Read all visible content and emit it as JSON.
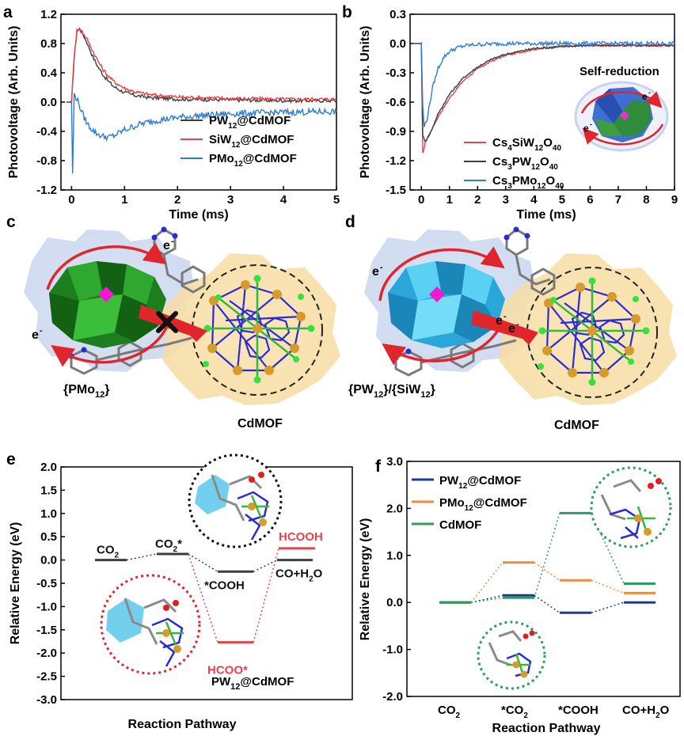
{
  "panel_labels": {
    "a": "a",
    "b": "b",
    "c": "c",
    "d": "d",
    "e": "e",
    "f": "f"
  },
  "colors": {
    "pw12": "#3d3d3d",
    "siw12": "#e8424a",
    "pmo12": "#2f7bd4",
    "f_pw12": "#1a3a9c",
    "f_pmo12": "#f08a3c",
    "f_cdmof": "#2f9a62",
    "red_label": "#e8424a"
  },
  "chart_data": [
    {
      "id": "a",
      "type": "line",
      "xlabel": "Time (ms)",
      "ylabel": "Photovoltage (Arb. Units)",
      "xlim": [
        -0.2,
        5
      ],
      "ylim": [
        -1.2,
        1.2
      ],
      "xticks": [
        0,
        1,
        2,
        3,
        4,
        5
      ],
      "yticks": [
        -1.2,
        -0.8,
        -0.4,
        0.0,
        0.4,
        0.8,
        1.2
      ],
      "ytick_labels": [
        "-1.2",
        "-0.8",
        "-0.4",
        "0.0",
        "0.4",
        "0.8",
        "1.2"
      ],
      "legend_position": "bottom-right",
      "series": [
        {
          "name_parts": [
            "PW",
            "12",
            "@CdMOF"
          ],
          "color_key": "pw12",
          "x": [
            -0.1,
            0.0,
            0.05,
            0.1,
            0.15,
            0.2,
            0.3,
            0.4,
            0.5,
            0.6,
            0.7,
            0.8,
            1.0,
            1.2,
            1.5,
            2.0,
            3.0,
            4.0,
            5.0
          ],
          "y": [
            0.0,
            0.0,
            0.6,
            0.97,
            1.0,
            0.95,
            0.8,
            0.62,
            0.48,
            0.37,
            0.28,
            0.21,
            0.13,
            0.09,
            0.06,
            0.04,
            0.03,
            0.02,
            0.02
          ]
        },
        {
          "name_parts": [
            "SiW",
            "12",
            "@CdMOF"
          ],
          "color_key": "siw12",
          "x": [
            -0.1,
            0.0,
            0.05,
            0.1,
            0.15,
            0.2,
            0.3,
            0.4,
            0.5,
            0.6,
            0.7,
            0.8,
            1.0,
            1.2,
            1.5,
            2.0,
            3.0,
            4.0,
            5.0
          ],
          "y": [
            0.0,
            0.0,
            0.65,
            0.98,
            1.0,
            0.96,
            0.85,
            0.7,
            0.56,
            0.44,
            0.35,
            0.28,
            0.19,
            0.14,
            0.1,
            0.07,
            0.05,
            0.04,
            0.04
          ]
        },
        {
          "name_parts": [
            "PMo",
            "12",
            "@CdMOF"
          ],
          "color_key": "pmo12",
          "x": [
            -0.1,
            0.0,
            0.02,
            0.05,
            0.1,
            0.2,
            0.3,
            0.45,
            0.6,
            0.7,
            0.8,
            1.0,
            1.3,
            1.6,
            2.0,
            2.5,
            3.0,
            4.0,
            5.0
          ],
          "y": [
            0.0,
            0.0,
            -1.0,
            0.1,
            0.05,
            -0.15,
            -0.3,
            -0.42,
            -0.47,
            -0.48,
            -0.46,
            -0.38,
            -0.3,
            -0.25,
            -0.21,
            -0.18,
            -0.16,
            -0.14,
            -0.13
          ]
        }
      ]
    },
    {
      "id": "b",
      "type": "line",
      "xlabel": "Time (ms)",
      "ylabel": "Photovoltage (Arb. Units)",
      "xlim": [
        -0.4,
        9
      ],
      "ylim": [
        -1.5,
        0.3
      ],
      "xticks": [
        0,
        1,
        2,
        3,
        4,
        5,
        6,
        7,
        8,
        9
      ],
      "yticks": [
        -1.5,
        -1.2,
        -0.9,
        -0.6,
        -0.3,
        0.0,
        0.3
      ],
      "ytick_labels": [
        "-1.5",
        "-1.2",
        "-0.9",
        "-0.6",
        "-0.3",
        "0.0",
        "0.3"
      ],
      "legend_position": "bottom-right",
      "annotation": "Self-reduction",
      "series": [
        {
          "name_parts": [
            "Cs",
            "4",
            "SiW",
            "12",
            "O",
            "40"
          ],
          "color_key": "siw12",
          "x": [
            -0.3,
            0.0,
            0.05,
            0.15,
            0.3,
            0.6,
            1.0,
            1.5,
            2.0,
            2.5,
            3.0,
            4.0,
            5.0,
            6.0,
            7.0,
            8.0,
            9.0
          ],
          "y": [
            0.0,
            0.0,
            -1.13,
            -1.0,
            -0.92,
            -0.75,
            -0.56,
            -0.38,
            -0.26,
            -0.18,
            -0.12,
            -0.06,
            -0.03,
            -0.02,
            -0.02,
            -0.02,
            -0.02
          ]
        },
        {
          "name_parts": [
            "Cs",
            "3",
            "PW",
            "12",
            "O",
            "40"
          ],
          "color_key": "pw12",
          "x": [
            -0.3,
            0.0,
            0.05,
            0.15,
            0.3,
            0.6,
            1.0,
            1.5,
            2.0,
            2.5,
            3.0,
            4.0,
            5.0,
            6.0,
            7.0,
            8.0,
            9.0
          ],
          "y": [
            0.0,
            0.0,
            -0.95,
            -1.0,
            -0.93,
            -0.72,
            -0.52,
            -0.35,
            -0.24,
            -0.16,
            -0.11,
            -0.05,
            -0.03,
            -0.02,
            -0.02,
            -0.02,
            -0.02
          ]
        },
        {
          "name_parts": [
            "Cs",
            "3",
            "PMo",
            "12",
            "O",
            "40"
          ],
          "color_key": "pmo12",
          "x": [
            -0.3,
            0.0,
            0.05,
            0.1,
            0.2,
            0.4,
            0.6,
            0.8,
            1.0,
            1.3,
            1.6,
            2.0,
            3.0,
            4.0,
            5.0,
            6.0,
            7.0,
            8.0,
            9.0
          ],
          "y": [
            0.0,
            0.0,
            -0.65,
            -0.85,
            -0.78,
            -0.45,
            -0.25,
            -0.14,
            -0.08,
            -0.04,
            -0.02,
            -0.01,
            0.0,
            0.0,
            0.0,
            0.0,
            0.0,
            0.0,
            0.0
          ]
        }
      ]
    },
    {
      "id": "e",
      "type": "line",
      "xlabel": "Reaction Pathway",
      "ylabel": "Relative Energy (eV)",
      "ylim": [
        -3.0,
        2.0
      ],
      "yticks": [
        -3.0,
        -2.5,
        -2.0,
        -1.5,
        -1.0,
        -0.5,
        0.0,
        0.5,
        1.0,
        1.5,
        2.0
      ],
      "ytick_labels": [
        "-3.0",
        "-2.5",
        "-2.0",
        "-1.5",
        "-1.0",
        "-0.5",
        "0.0",
        "0.5",
        "1.0",
        "1.5",
        "2.0"
      ],
      "caption_parts": [
        "PW",
        "12",
        "@CdMOF"
      ],
      "levels": [
        {
          "key": "co2",
          "label_parts": [
            "CO",
            "2",
            ""
          ],
          "value": 0.0,
          "color_key": "pw12"
        },
        {
          "key": "co2s",
          "label_parts": [
            "CO",
            "2",
            "*"
          ],
          "value": 0.13,
          "color_key": "pw12"
        },
        {
          "key": "cooh",
          "label_parts": [
            "*COOH",
            "",
            ""
          ],
          "value": -0.25,
          "color_key": "pw12"
        },
        {
          "key": "hcoo",
          "label_parts": [
            "HCOO*",
            "",
            ""
          ],
          "value": -1.77,
          "color_key": "siw12"
        },
        {
          "key": "coh2o",
          "label_parts": [
            "CO+H",
            "2",
            "O"
          ],
          "value": 0.0,
          "color_key": "pw12"
        },
        {
          "key": "hcooh",
          "label_parts": [
            "HCOOH",
            "",
            ""
          ],
          "value": 0.25,
          "color_key": "siw12"
        }
      ]
    },
    {
      "id": "f",
      "type": "line",
      "xlabel": "Reaction Pathway",
      "ylabel": "Relative Energy (eV)",
      "ylim": [
        -2.0,
        3.0
      ],
      "yticks": [
        -2.0,
        -1.0,
        0.0,
        1.0,
        2.0,
        3.0
      ],
      "ytick_labels": [
        "-2.0",
        "-1.0",
        "0.0",
        "1.0",
        "2.0",
        "3.0"
      ],
      "categories_parts": [
        [
          "CO",
          "2",
          ""
        ],
        [
          "*CO",
          "2",
          ""
        ],
        [
          "*COOH",
          "",
          ""
        ],
        [
          "CO+H",
          "2",
          "O"
        ]
      ],
      "legend_position": "top-left",
      "series": [
        {
          "name_parts": [
            "PW",
            "12",
            "@CdMOF"
          ],
          "color_key": "f_pw12",
          "values": [
            0.0,
            0.15,
            -0.22,
            0.0
          ]
        },
        {
          "name_parts": [
            "PMo",
            "12",
            "@CdMOF"
          ],
          "color_key": "f_pmo12",
          "values": [
            0.0,
            0.85,
            0.47,
            0.2
          ]
        },
        {
          "name_parts": [
            "CdMOF",
            "",
            ""
          ],
          "color_key": "f_cdmof",
          "values": [
            0.0,
            0.1,
            1.9,
            0.4
          ]
        }
      ]
    }
  ],
  "structure_c": {
    "label_parts": [
      "{PMo",
      "12",
      "}"
    ],
    "mof_label": "CdMOF",
    "e1": "e",
    "e2": "e",
    "sup": "-"
  },
  "structure_d": {
    "label_parts": [
      "{PW",
      "12",
      "}/{SiW",
      "12",
      "}"
    ],
    "mof_label": "CdMOF",
    "e1": "e",
    "e2": "e",
    "e3": "e",
    "sup": "-"
  },
  "inset_b": {
    "e1": "e",
    "e2": "e",
    "sup": "-"
  }
}
